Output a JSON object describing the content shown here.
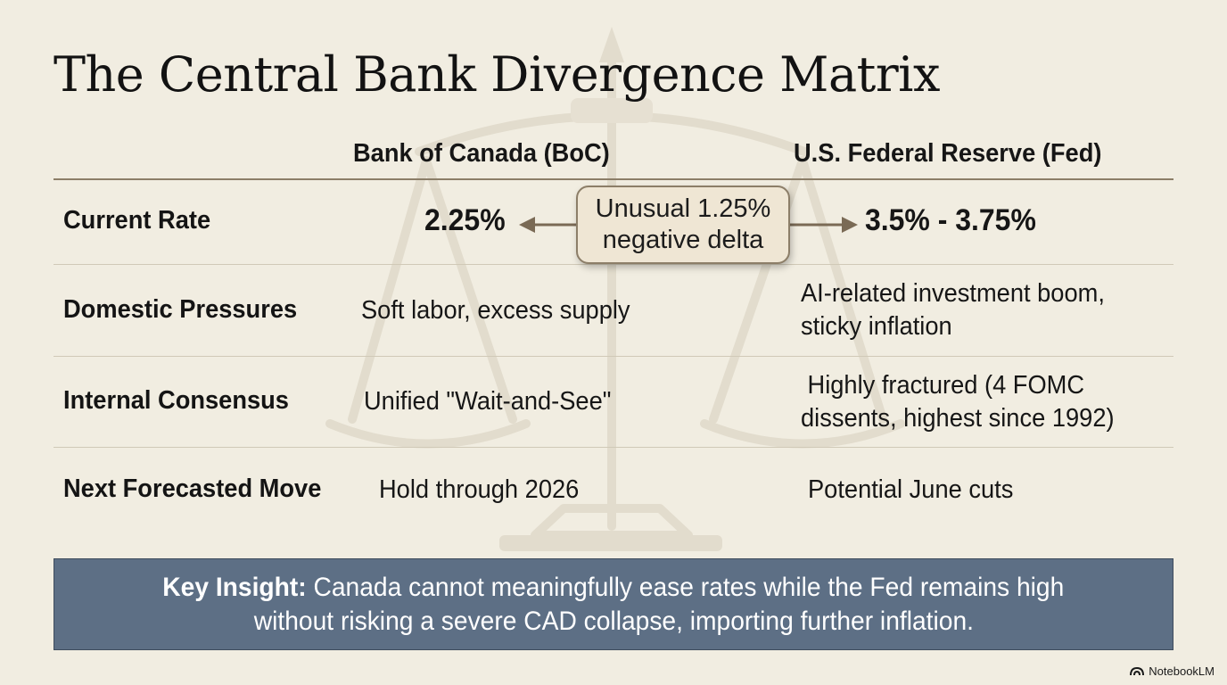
{
  "title": "The Central Bank Divergence Matrix",
  "columns": {
    "boc": "Bank of Canada (BoC)",
    "fed": "U.S. Federal Reserve (Fed)"
  },
  "rows": [
    {
      "label": "Current Rate",
      "boc": "2.25%",
      "fed": "3.5% - 3.75%"
    },
    {
      "label": "Domestic Pressures",
      "boc": "Soft labor, excess supply",
      "fed_line1": "AI-related investment boom,",
      "fed_line2": "sticky inflation"
    },
    {
      "label": "Internal Consensus",
      "boc": "Unified \"Wait-and-See\"",
      "fed_line1": "Highly fractured (4 FOMC",
      "fed_line2": "dissents, highest since 1992)"
    },
    {
      "label": "Next Forecasted Move",
      "boc": "Hold through 2026",
      "fed": "Potential June cuts"
    }
  ],
  "delta": {
    "line1": "Unusual 1.25%",
    "line2": "negative delta"
  },
  "insight": {
    "lead": "Key Insight:",
    "line1": " Canada cannot meaningfully ease rates while the Fed remains high",
    "line2": "without risking a severe CAD collapse, importing further inflation."
  },
  "brand": "NotebookLM"
}
